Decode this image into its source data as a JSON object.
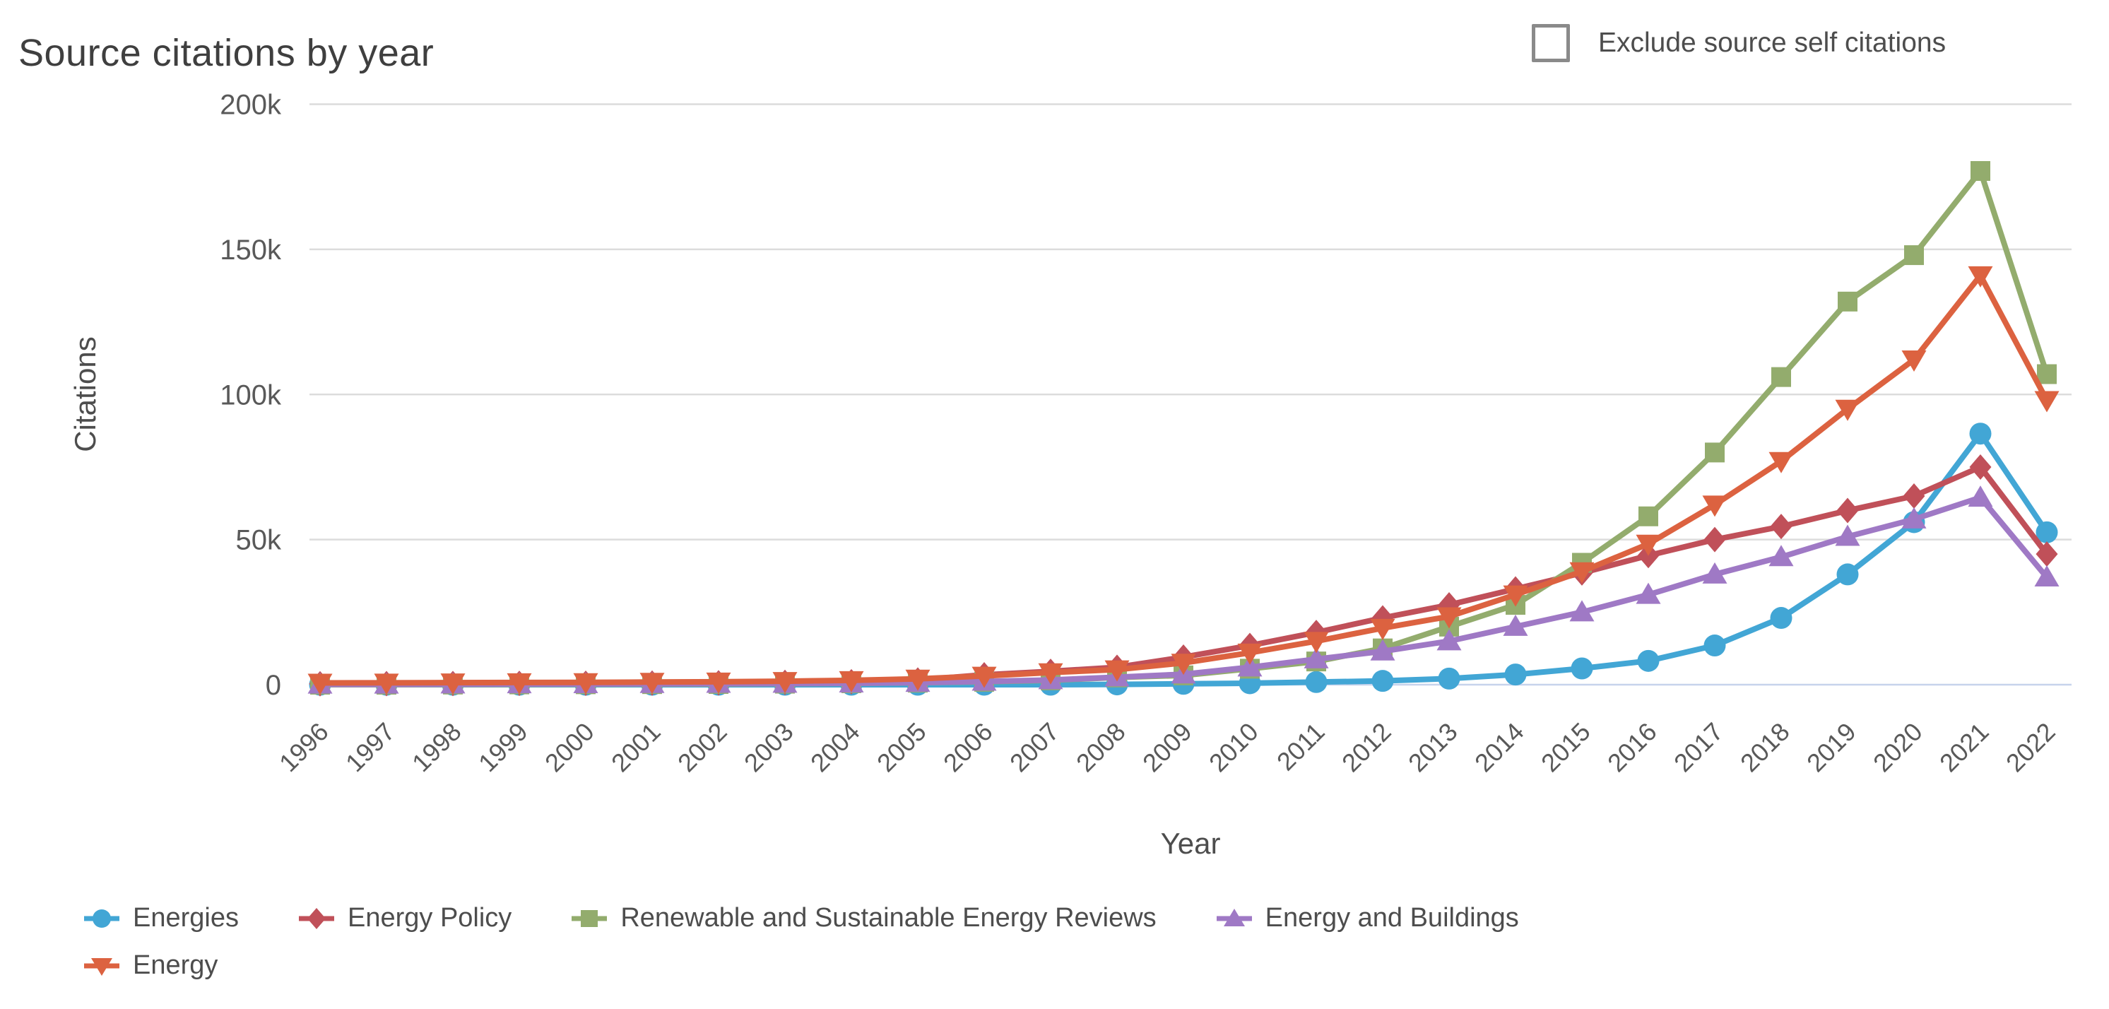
{
  "title": "Source citations by year",
  "controls": {
    "exclude_checkbox_label": "Exclude source self citations",
    "exclude_checkbox_checked": false
  },
  "colors": {
    "grid": "#dcdcdc",
    "zero_line": "#c7d3ec",
    "axis_text": "#595959",
    "axis_title_text": "#4d4d4d",
    "title_text": "#3f3f3f"
  },
  "chart_data": {
    "type": "line",
    "title": "Source citations by year",
    "xlabel": "Year",
    "ylabel": "Citations",
    "grid": "horizontal",
    "legend_position": "bottom-left",
    "ylim": [
      0,
      200000
    ],
    "yticks": [
      {
        "value": 0,
        "label": "0"
      },
      {
        "value": 50000,
        "label": "50k"
      },
      {
        "value": 100000,
        "label": "100k"
      },
      {
        "value": 150000,
        "label": "150k"
      },
      {
        "value": 200000,
        "label": "200k"
      }
    ],
    "x": [
      1996,
      1997,
      1998,
      1999,
      2000,
      2001,
      2002,
      2003,
      2004,
      2005,
      2006,
      2007,
      2008,
      2009,
      2010,
      2011,
      2012,
      2013,
      2014,
      2015,
      2016,
      2017,
      2018,
      2019,
      2020,
      2021,
      2022
    ],
    "series": [
      {
        "name": "Energies",
        "color": "#42a6d5",
        "marker": "circle",
        "legend_row": 1,
        "values": [
          0,
          0,
          0,
          0,
          0,
          0,
          0,
          0,
          0,
          0,
          0,
          0,
          100,
          300,
          500,
          900,
          1300,
          2100,
          3500,
          5600,
          8200,
          13500,
          23000,
          38000,
          56000,
          86500,
          52500
        ]
      },
      {
        "name": "Energy Policy",
        "color": "#c05059",
        "marker": "diamond",
        "legend_row": 1,
        "values": [
          300,
          350,
          400,
          450,
          500,
          550,
          650,
          800,
          1000,
          1600,
          3400,
          4600,
          6000,
          9500,
          13500,
          18000,
          23000,
          27500,
          33000,
          38500,
          44500,
          50000,
          54500,
          60000,
          65000,
          75000,
          45000
        ]
      },
      {
        "name": "Renewable and Sustainable Energy Reviews",
        "color": "#93ac6d",
        "marker": "square",
        "legend_row": 1,
        "values": [
          0,
          0,
          50,
          100,
          150,
          200,
          250,
          350,
          500,
          700,
          1000,
          1500,
          2500,
          3200,
          5500,
          8000,
          12500,
          20000,
          27500,
          42000,
          58000,
          80000,
          106000,
          132000,
          148000,
          177000,
          107000
        ]
      },
      {
        "name": "Energy and Buildings",
        "color": "#9f79c5",
        "marker": "triangle-up",
        "legend_row": 1,
        "values": [
          100,
          100,
          150,
          200,
          250,
          300,
          350,
          400,
          500,
          700,
          1100,
          1600,
          2600,
          3600,
          6000,
          8800,
          11500,
          15000,
          20000,
          25000,
          31000,
          38000,
          44000,
          51000,
          57000,
          64500,
          37000
        ]
      },
      {
        "name": "Energy",
        "color": "#dc6240",
        "marker": "triangle-down",
        "legend_row": 2,
        "values": [
          600,
          650,
          700,
          750,
          800,
          900,
          1000,
          1200,
          1500,
          2000,
          3000,
          4200,
          5200,
          7500,
          11000,
          15000,
          19500,
          23500,
          31000,
          39000,
          48500,
          62000,
          77000,
          95000,
          112000,
          141000,
          98000
        ]
      }
    ]
  }
}
